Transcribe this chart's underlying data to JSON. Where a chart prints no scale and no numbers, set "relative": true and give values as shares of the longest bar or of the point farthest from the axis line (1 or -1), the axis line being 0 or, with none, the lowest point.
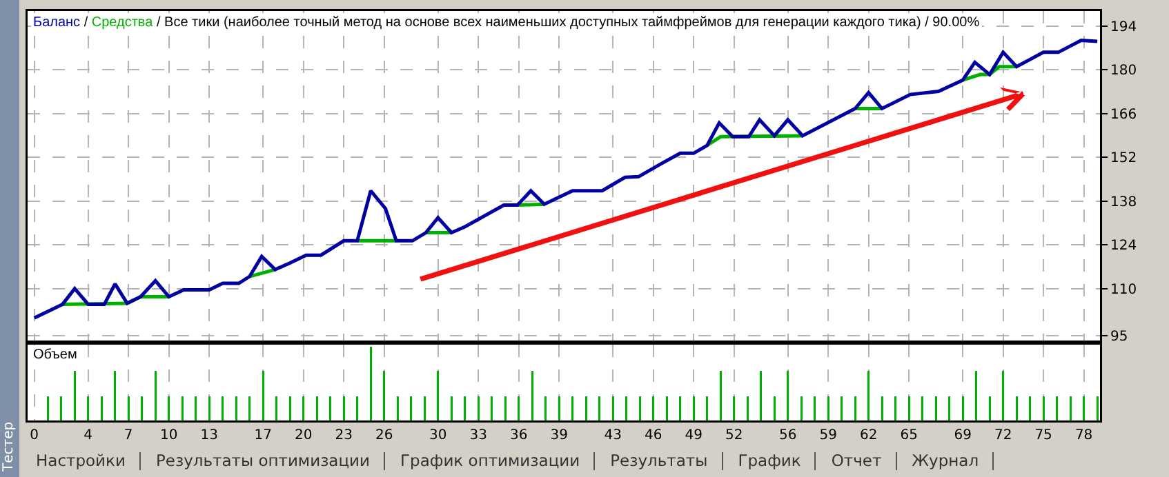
{
  "chart_data": [
    {
      "type": "line",
      "title": "Баланс / Средства / Все тики (наиболее точный метод на основе всех наименьших доступных таймфреймов для генерации каждого тика) / 90.00%",
      "xlim": [
        -0.5,
        79.2
      ],
      "ylim": [
        93.4,
        198.8
      ],
      "xticks": [
        0,
        4,
        7,
        10,
        13,
        17,
        20,
        23,
        26,
        30,
        33,
        36,
        39,
        43,
        46,
        49,
        52,
        56,
        59,
        62,
        65,
        69,
        72,
        75,
        78
      ],
      "yticks": [
        95,
        110,
        124,
        138,
        152,
        166,
        180,
        194
      ],
      "tick_labels": "y",
      "grid": true,
      "legend": false,
      "marker": "none",
      "line_style": "solid",
      "series": [
        {
          "color": "#00b000",
          "x": [
            2.1,
            6.9,
            7.9,
            10,
            10.5,
            16,
            17.9,
            18.5,
            24,
            26.9,
            27.5,
            29.1,
            31,
            33,
            35.9,
            37.9,
            45,
            50,
            51,
            57.1,
            59,
            61,
            63,
            66,
            69,
            70.3,
            71,
            71.7,
            73
          ],
          "values": [
            105,
            105.3,
            107.4,
            107.4,
            null,
            113.9,
            116.1,
            null,
            125.3,
            125.3,
            null,
            127.9,
            127.9,
            null,
            136.7,
            137,
            null,
            155.8,
            158.6,
            158.9,
            null,
            167.6,
            167.6,
            null,
            176.7,
            178.5,
            178.5,
            181,
            181
          ]
        },
        {
          "color": "#0000a0",
          "x": [
            0,
            2.1,
            3,
            4,
            5.2,
            6,
            6.9,
            7.9,
            9,
            10,
            11.1,
            13,
            14,
            15.2,
            16,
            16.9,
            17.9,
            19,
            20.2,
            21.3,
            23,
            24,
            25,
            26.1,
            26.9,
            28.1,
            29.1,
            30,
            31,
            32,
            34.9,
            35.9,
            36.9,
            37.9,
            40,
            42.2,
            43.9,
            44.9,
            46.6,
            48,
            49,
            50,
            50.9,
            51.9,
            53.1,
            53.9,
            55,
            56,
            57.1,
            61,
            62,
            63,
            65.1,
            67.2,
            69,
            69.9,
            71,
            72,
            73,
            75,
            76.1,
            77.8,
            79
          ],
          "values": [
            100.6,
            105,
            110,
            105,
            105,
            111.5,
            105.3,
            107.4,
            112.5,
            107.4,
            109.6,
            109.6,
            111.7,
            111.7,
            113.9,
            120.3,
            116.1,
            118.2,
            120.7,
            120.7,
            125.3,
            125.3,
            141.3,
            135.6,
            125.3,
            125.3,
            127.9,
            132.7,
            127.9,
            129.8,
            136.7,
            136.7,
            141.3,
            137,
            141.3,
            141.3,
            145.6,
            145.8,
            150,
            153.3,
            153.3,
            155.8,
            163,
            158.6,
            158.6,
            164,
            158.9,
            164,
            158.9,
            167.6,
            172.7,
            167.6,
            172.1,
            173.1,
            176.7,
            182.4,
            178.5,
            185.6,
            181,
            185.6,
            185.6,
            189.4,
            189.1
          ]
        }
      ]
    },
    {
      "type": "bar",
      "title": "Объем",
      "relative": true,
      "tick_labels": "x",
      "grid": "x",
      "legend": false,
      "xlim": [
        -0.5,
        79.2
      ],
      "xticks": [
        0,
        4,
        7,
        10,
        13,
        17,
        20,
        23,
        26,
        30,
        33,
        36,
        39,
        43,
        46,
        49,
        52,
        56,
        59,
        62,
        65,
        69,
        72,
        75,
        78
      ],
      "series": [
        {
          "color": "#00b000",
          "x": [
            1,
            2,
            3,
            4,
            5,
            6,
            7,
            8,
            9,
            10,
            11,
            12,
            13,
            14,
            15,
            16,
            17,
            18,
            19,
            20,
            21,
            22,
            23,
            24,
            25,
            26,
            27,
            28,
            29,
            30,
            31,
            32,
            33,
            34,
            35,
            36,
            37,
            38,
            39,
            40,
            41,
            42,
            43,
            44,
            45,
            46,
            47,
            48,
            49,
            50,
            51,
            52,
            53,
            54,
            55,
            56,
            57,
            58,
            59,
            60,
            61,
            62,
            63,
            64,
            65,
            66,
            67,
            68,
            69,
            70,
            71,
            72,
            73,
            74,
            75,
            76,
            77,
            78,
            79
          ],
          "values": [
            0.33,
            0.33,
            0.67,
            0.33,
            0.33,
            0.67,
            0.33,
            0.33,
            0.67,
            0.33,
            0.33,
            0.33,
            0.33,
            0.33,
            0.33,
            0.33,
            0.67,
            0.33,
            0.33,
            0.33,
            0.33,
            0.33,
            0.33,
            0.33,
            1,
            0.67,
            0.33,
            0.33,
            0.33,
            0.67,
            0.33,
            0.33,
            0.33,
            0.33,
            0.33,
            0.33,
            0.67,
            0.33,
            0.33,
            0.33,
            0.33,
            0.33,
            0.33,
            0.33,
            0.33,
            0.33,
            0.33,
            0.33,
            0.33,
            0.33,
            0.67,
            0.33,
            0.33,
            0.67,
            0.33,
            0.67,
            0.33,
            0.33,
            0.33,
            0.33,
            0.33,
            0.67,
            0.33,
            0.33,
            0.33,
            0.33,
            0.33,
            0.33,
            0.33,
            0.67,
            0.33,
            0.67,
            0.33,
            0.33,
            0.33,
            0.33,
            0.33,
            0.33,
            0.33
          ]
        }
      ]
    },
    {
      "type": "other",
      "title": "Тестер",
      "annotations": [
        "Настройки",
        "Результаты оптимизации",
        "График оптимизации",
        "Результаты",
        "График",
        "Отчет",
        "Журнал"
      ]
    }
  ]
}
